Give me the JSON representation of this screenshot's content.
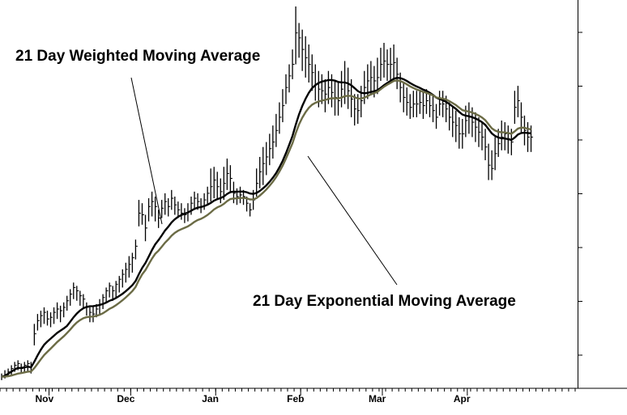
{
  "chart_data": {
    "type": "line",
    "title": "",
    "xlabel": "",
    "ylabel": "",
    "grid": false,
    "month_labels": [
      "Nov",
      "Dec",
      "Jan",
      "Feb",
      "Mar",
      "Apr"
    ],
    "month_start_index": [
      15,
      40,
      66,
      92,
      117,
      143
    ],
    "total_days": 176,
    "ylim": [
      0,
      100
    ],
    "price_bars": [
      [
        7,
        3,
        5
      ],
      [
        9,
        4,
        6
      ],
      [
        10,
        5,
        8
      ],
      [
        12,
        6,
        10
      ],
      [
        14,
        8,
        12
      ],
      [
        15,
        9,
        13
      ],
      [
        13,
        7,
        10
      ],
      [
        14,
        8,
        12
      ],
      [
        15,
        8,
        13
      ],
      [
        14,
        7,
        9
      ],
      [
        37,
        24,
        31
      ],
      [
        43,
        33,
        39
      ],
      [
        45,
        35,
        42
      ],
      [
        47,
        37,
        44
      ],
      [
        45,
        36,
        40
      ],
      [
        44,
        35,
        41
      ],
      [
        47,
        37,
        44
      ],
      [
        50,
        40,
        46
      ],
      [
        48,
        38,
        45
      ],
      [
        50,
        41,
        47
      ],
      [
        54,
        45,
        51
      ],
      [
        58,
        48,
        55
      ],
      [
        62,
        52,
        59
      ],
      [
        60,
        51,
        57
      ],
      [
        57,
        48,
        54
      ],
      [
        55,
        46,
        52
      ],
      [
        50,
        42,
        47
      ],
      [
        47,
        38,
        44
      ],
      [
        48,
        38,
        43
      ],
      [
        49,
        41,
        46
      ],
      [
        52,
        43,
        49
      ],
      [
        55,
        46,
        53
      ],
      [
        59,
        50,
        57
      ],
      [
        62,
        53,
        60
      ],
      [
        60,
        51,
        57
      ],
      [
        63,
        53,
        61
      ],
      [
        66,
        56,
        64
      ],
      [
        70,
        59,
        67
      ],
      [
        74,
        62,
        70
      ],
      [
        78,
        65,
        73
      ],
      [
        80,
        68,
        77
      ],
      [
        88,
        76,
        84
      ],
      [
        112,
        96,
        104
      ],
      [
        110,
        97,
        103
      ],
      [
        103,
        87,
        95
      ],
      [
        113,
        99,
        108
      ],
      [
        117,
        102,
        111
      ],
      [
        114,
        99,
        108
      ],
      [
        106,
        95,
        101
      ],
      [
        112,
        101,
        107
      ],
      [
        116,
        103,
        111
      ],
      [
        113,
        102,
        108
      ],
      [
        118,
        106,
        113
      ],
      [
        114,
        103,
        109
      ],
      [
        111,
        101,
        106
      ],
      [
        110,
        100,
        104
      ],
      [
        107,
        98,
        103
      ],
      [
        110,
        99,
        105
      ],
      [
        114,
        103,
        110
      ],
      [
        117,
        106,
        113
      ],
      [
        116,
        106,
        111
      ],
      [
        113,
        104,
        108
      ],
      [
        116,
        106,
        112
      ],
      [
        120,
        109,
        116
      ],
      [
        131,
        111,
        120
      ],
      [
        132,
        113,
        124
      ],
      [
        129,
        112,
        120
      ],
      [
        125,
        110,
        117
      ],
      [
        132,
        112,
        122
      ],
      [
        137,
        118,
        128
      ],
      [
        133,
        116,
        125
      ],
      [
        123,
        110,
        116
      ],
      [
        119,
        109,
        114
      ],
      [
        120,
        110,
        115
      ],
      [
        118,
        109,
        114
      ],
      [
        114,
        105,
        110
      ],
      [
        110,
        102,
        106
      ],
      [
        118,
        106,
        112
      ],
      [
        131,
        114,
        122
      ],
      [
        138,
        119,
        129
      ],
      [
        144,
        121,
        134
      ],
      [
        147,
        127,
        138
      ],
      [
        152,
        133,
        143
      ],
      [
        157,
        137,
        147
      ],
      [
        164,
        144,
        154
      ],
      [
        171,
        152,
        162
      ],
      [
        179,
        159,
        169
      ],
      [
        188,
        170,
        180
      ],
      [
        194,
        177,
        187
      ],
      [
        203,
        185,
        194
      ],
      [
        229,
        194,
        213
      ],
      [
        219,
        198,
        210
      ],
      [
        215,
        190,
        203
      ],
      [
        211,
        186,
        198
      ],
      [
        206,
        183,
        194
      ],
      [
        200,
        178,
        189
      ],
      [
        194,
        172,
        182
      ],
      [
        190,
        168,
        179
      ],
      [
        188,
        170,
        178
      ],
      [
        185,
        165,
        176
      ],
      [
        190,
        170,
        180
      ],
      [
        188,
        168,
        177
      ],
      [
        184,
        163,
        174
      ],
      [
        183,
        163,
        172
      ],
      [
        190,
        168,
        179
      ],
      [
        196,
        170,
        183
      ],
      [
        192,
        167,
        178
      ],
      [
        185,
        162,
        173
      ],
      [
        176,
        157,
        167
      ],
      [
        176,
        158,
        166
      ],
      [
        181,
        162,
        172
      ],
      [
        190,
        170,
        180
      ],
      [
        194,
        173,
        184
      ],
      [
        196,
        176,
        186
      ],
      [
        193,
        174,
        184
      ],
      [
        198,
        176,
        186
      ],
      [
        204,
        184,
        194
      ],
      [
        207,
        186,
        196
      ],
      [
        203,
        184,
        194
      ],
      [
        204,
        183,
        194
      ],
      [
        206,
        184,
        195
      ],
      [
        198,
        179,
        188
      ],
      [
        189,
        171,
        180
      ],
      [
        183,
        165,
        174
      ],
      [
        180,
        163,
        171
      ],
      [
        176,
        161,
        168
      ],
      [
        178,
        162,
        170
      ],
      [
        178,
        162,
        170
      ],
      [
        178,
        164,
        171
      ],
      [
        177,
        161,
        169
      ],
      [
        179,
        164,
        172
      ],
      [
        177,
        162,
        169
      ],
      [
        175,
        159,
        166
      ],
      [
        170,
        155,
        162
      ],
      [
        178,
        163,
        170
      ],
      [
        178,
        162,
        170
      ],
      [
        175,
        159,
        167
      ],
      [
        171,
        154,
        162
      ],
      [
        168,
        150,
        159
      ],
      [
        166,
        147,
        157
      ],
      [
        162,
        143,
        152
      ],
      [
        161,
        143,
        152
      ],
      [
        169,
        150,
        160
      ],
      [
        171,
        152,
        162
      ],
      [
        168,
        150,
        159
      ],
      [
        165,
        147,
        156
      ],
      [
        162,
        144,
        153
      ],
      [
        159,
        142,
        150
      ],
      [
        155,
        136,
        144
      ],
      [
        146,
        124,
        133
      ],
      [
        142,
        124,
        131
      ],
      [
        150,
        130,
        140
      ],
      [
        155,
        138,
        146
      ],
      [
        160,
        142,
        150
      ],
      [
        159,
        142,
        152
      ],
      [
        157,
        140,
        149
      ],
      [
        155,
        139,
        147
      ],
      [
        178,
        158,
        168
      ],
      [
        181,
        162,
        172
      ],
      [
        171,
        153,
        162
      ],
      [
        163,
        145,
        154
      ],
      [
        159,
        141,
        150
      ],
      [
        157,
        141,
        150
      ]
    ],
    "series": [
      {
        "name": "21 Day Weighted Moving Average",
        "color": "#000000",
        "kind": "wma",
        "period": 21
      },
      {
        "name": "21 Day Exponential Moving Average",
        "color": "#6b6b45",
        "kind": "ema",
        "period": 21
      }
    ],
    "annotations": [
      {
        "text": "21 Day Weighted Moving Average",
        "series_index": 0
      },
      {
        "text": "21 Day Exponential Moving Average",
        "series_index": 1
      }
    ]
  }
}
